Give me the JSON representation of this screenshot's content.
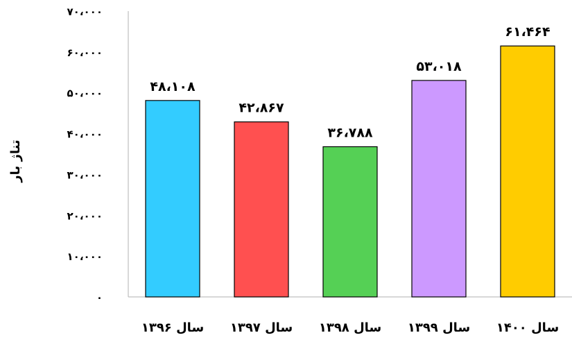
{
  "chart_data": {
    "type": "bar",
    "title": "",
    "xlabel": "",
    "ylabel": "تناژ بار",
    "ylim": [
      0,
      70000
    ],
    "ytick_values": [
      0,
      10000,
      20000,
      30000,
      40000,
      50000,
      60000,
      70000
    ],
    "ytick_labels": [
      "۰",
      "۱۰،۰۰۰",
      "۲۰،۰۰۰",
      "۳۰،۰۰۰",
      "۴۰،۰۰۰",
      "۵۰،۰۰۰",
      "۶۰،۰۰۰",
      "۷۰،۰۰۰"
    ],
    "categories": [
      "سال ۱۳۹۶",
      "سال ۱۳۹۷",
      "سال ۱۳۹۸",
      "سال ۱۳۹۹",
      "سال ۱۴۰۰"
    ],
    "values": [
      48108,
      42867,
      36788,
      53018,
      61464
    ],
    "data_labels": [
      "۴۸،۱۰۸",
      "۴۲،۸۶۷",
      "۳۶،۷۸۸",
      "۵۳،۰۱۸",
      "۶۱،۴۶۴"
    ],
    "colors": [
      "#33CCFF",
      "#FF5050",
      "#55D055",
      "#CC99FF",
      "#FFCC00"
    ],
    "grid": false,
    "legend": "none"
  }
}
